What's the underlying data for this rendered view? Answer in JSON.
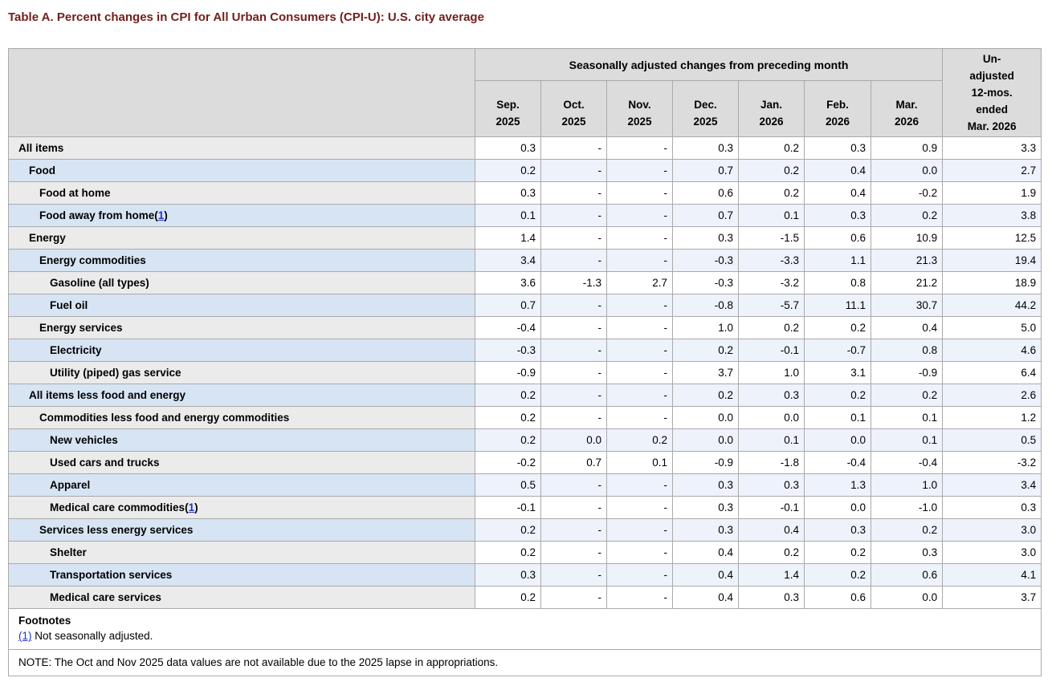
{
  "page": {
    "title": "Table A. Percent changes in CPI for All Urban Consumers (CPI-U): U.S. city average"
  },
  "strings": {
    "fn_open": "(",
    "fn_close": ")"
  },
  "table": {
    "group_header": "Seasonally adjusted changes from preceding month",
    "unadjusted_header": "Un-\nadjusted\n12-mos.\nended\nMar. 2026",
    "columns": [
      {
        "month": "Sep.",
        "year": "2025"
      },
      {
        "month": "Oct.",
        "year": "2025"
      },
      {
        "month": "Nov.",
        "year": "2025"
      },
      {
        "month": "Dec.",
        "year": "2025"
      },
      {
        "month": "Jan.",
        "year": "2026"
      },
      {
        "month": "Feb.",
        "year": "2026"
      },
      {
        "month": "Mar.",
        "year": "2026"
      }
    ],
    "rows": [
      {
        "label": "All items",
        "indent": 0,
        "footnote_ref": null,
        "values": [
          "0.3",
          "-",
          "-",
          "0.3",
          "0.2",
          "0.3",
          "0.9",
          "3.3"
        ]
      },
      {
        "label": "Food",
        "indent": 1,
        "footnote_ref": null,
        "values": [
          "0.2",
          "-",
          "-",
          "0.7",
          "0.2",
          "0.4",
          "0.0",
          "2.7"
        ]
      },
      {
        "label": "Food at home",
        "indent": 2,
        "footnote_ref": null,
        "values": [
          "0.3",
          "-",
          "-",
          "0.6",
          "0.2",
          "0.4",
          "-0.2",
          "1.9"
        ]
      },
      {
        "label": "Food away from home",
        "indent": 2,
        "footnote_ref": "1",
        "values": [
          "0.1",
          "-",
          "-",
          "0.7",
          "0.1",
          "0.3",
          "0.2",
          "3.8"
        ]
      },
      {
        "label": "Energy",
        "indent": 1,
        "footnote_ref": null,
        "values": [
          "1.4",
          "-",
          "-",
          "0.3",
          "-1.5",
          "0.6",
          "10.9",
          "12.5"
        ]
      },
      {
        "label": "Energy commodities",
        "indent": 2,
        "footnote_ref": null,
        "values": [
          "3.4",
          "-",
          "-",
          "-0.3",
          "-3.3",
          "1.1",
          "21.3",
          "19.4"
        ]
      },
      {
        "label": "Gasoline (all types)",
        "indent": 3,
        "footnote_ref": null,
        "values": [
          "3.6",
          "-1.3",
          "2.7",
          "-0.3",
          "-3.2",
          "0.8",
          "21.2",
          "18.9"
        ]
      },
      {
        "label": "Fuel oil",
        "indent": 3,
        "footnote_ref": null,
        "values": [
          "0.7",
          "-",
          "-",
          "-0.8",
          "-5.7",
          "11.1",
          "30.7",
          "44.2"
        ]
      },
      {
        "label": "Energy services",
        "indent": 2,
        "footnote_ref": null,
        "values": [
          "-0.4",
          "-",
          "-",
          "1.0",
          "0.2",
          "0.2",
          "0.4",
          "5.0"
        ]
      },
      {
        "label": "Electricity",
        "indent": 3,
        "footnote_ref": null,
        "values": [
          "-0.3",
          "-",
          "-",
          "0.2",
          "-0.1",
          "-0.7",
          "0.8",
          "4.6"
        ]
      },
      {
        "label": "Utility (piped) gas service",
        "indent": 3,
        "footnote_ref": null,
        "values": [
          "-0.9",
          "-",
          "-",
          "3.7",
          "1.0",
          "3.1",
          "-0.9",
          "6.4"
        ]
      },
      {
        "label": "All items less food and energy",
        "indent": 1,
        "footnote_ref": null,
        "values": [
          "0.2",
          "-",
          "-",
          "0.2",
          "0.3",
          "0.2",
          "0.2",
          "2.6"
        ]
      },
      {
        "label": "Commodities less food and energy commodities",
        "indent": 2,
        "footnote_ref": null,
        "values": [
          "0.2",
          "-",
          "-",
          "0.0",
          "0.0",
          "0.1",
          "0.1",
          "1.2"
        ]
      },
      {
        "label": "New vehicles",
        "indent": 3,
        "footnote_ref": null,
        "values": [
          "0.2",
          "0.0",
          "0.2",
          "0.0",
          "0.1",
          "0.0",
          "0.1",
          "0.5"
        ]
      },
      {
        "label": "Used cars and trucks",
        "indent": 3,
        "footnote_ref": null,
        "values": [
          "-0.2",
          "0.7",
          "0.1",
          "-0.9",
          "-1.8",
          "-0.4",
          "-0.4",
          "-3.2"
        ]
      },
      {
        "label": "Apparel",
        "indent": 3,
        "footnote_ref": null,
        "values": [
          "0.5",
          "-",
          "-",
          "0.3",
          "0.3",
          "1.3",
          "1.0",
          "3.4"
        ]
      },
      {
        "label": "Medical care commodities",
        "indent": 3,
        "footnote_ref": "1",
        "values": [
          "-0.1",
          "-",
          "-",
          "0.3",
          "-0.1",
          "0.0",
          "-1.0",
          "0.3"
        ]
      },
      {
        "label": "Services less energy services",
        "indent": 2,
        "footnote_ref": null,
        "values": [
          "0.2",
          "-",
          "-",
          "0.3",
          "0.4",
          "0.3",
          "0.2",
          "3.0"
        ]
      },
      {
        "label": "Shelter",
        "indent": 3,
        "footnote_ref": null,
        "values": [
          "0.2",
          "-",
          "-",
          "0.4",
          "0.2",
          "0.2",
          "0.3",
          "3.0"
        ]
      },
      {
        "label": "Transportation services",
        "indent": 3,
        "footnote_ref": null,
        "values": [
          "0.3",
          "-",
          "-",
          "0.4",
          "1.4",
          "0.2",
          "0.6",
          "4.1"
        ]
      },
      {
        "label": "Medical care services",
        "indent": 3,
        "footnote_ref": null,
        "values": [
          "0.2",
          "-",
          "-",
          "0.4",
          "0.3",
          "0.6",
          "0.0",
          "3.7"
        ]
      }
    ],
    "footnotes_heading": "Footnotes",
    "footnote_items": [
      {
        "marker": "(1)",
        "text": "Not seasonally adjusted."
      }
    ],
    "note": "NOTE: The Oct and Nov 2025 data values are not available due to the 2025 lapse in appropriations."
  },
  "colors": {
    "title_text": "#71201e",
    "link_blue": "#2333cc",
    "header_bg": "#dcdcdc",
    "row_label_gray": "#ebebeb",
    "row_label_blue": "#d7e4f4",
    "data_cell_white": "#ffffff",
    "data_cell_blue": "#edf2fb",
    "border_gray": "#aaaaaa"
  }
}
